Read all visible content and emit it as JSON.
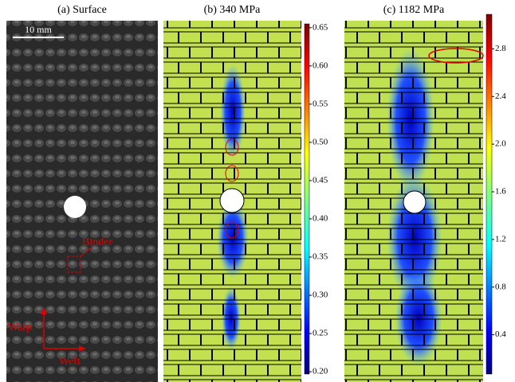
{
  "panels": [
    {
      "title": "(a) Surface",
      "scale_bar": "10 mm",
      "annotations": [
        "Binder",
        "Warp",
        "Weft"
      ]
    },
    {
      "title": "(b) 340 MPa",
      "colorbar": {
        "lim": [
          0.197,
          0.655
        ],
        "ticks": [
          0.65,
          {
            "value": 0.6,
            "label": "0.60"
          },
          0.55,
          {
            "value": 0.5,
            "label": "0.50"
          },
          0.45,
          {
            "value": 0.4,
            "label": "0.40"
          },
          0.35,
          {
            "value": 0.3,
            "label": "0.30"
          },
          0.25,
          {
            "value": 0.2,
            "label": "0.20"
          }
        ]
      }
    },
    {
      "title": "(c) 1182 MPa",
      "colorbar": {
        "lim": [
          0.07,
          3.09
        ],
        "ticks": [
          2.8,
          2.4,
          {
            "value": 2,
            "label": "2.0"
          },
          1.6,
          1.2,
          0.8,
          0.4
        ]
      }
    }
  ]
}
